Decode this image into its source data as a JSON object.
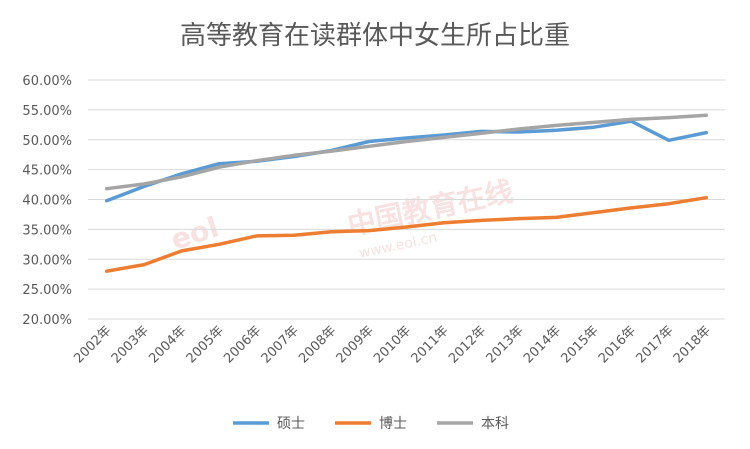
{
  "watermark": {
    "logo_text": "eol",
    "cn_text": "中国教育在线",
    "url_text": "www.eol.cn"
  },
  "chart_data": {
    "type": "line",
    "title": "高等教育在读群体中女生所占比重",
    "categories": [
      "2002年",
      "2003年",
      "2004年",
      "2005年",
      "2006年",
      "2007年",
      "2008年",
      "2009年",
      "2010年",
      "2011年",
      "2012年",
      "2013年",
      "2014年",
      "2015年",
      "2016年",
      "2017年",
      "2018年"
    ],
    "ylim": [
      0.2,
      0.6
    ],
    "yticks": [
      0.2,
      0.25,
      0.3,
      0.35,
      0.4,
      0.45,
      0.5,
      0.55,
      0.6
    ],
    "ytick_labels": [
      "20.00%",
      "25.00%",
      "30.00%",
      "35.00%",
      "40.00%",
      "45.00%",
      "50.00%",
      "55.00%",
      "60.00%"
    ],
    "grid": true,
    "legend": "bottom",
    "series": [
      {
        "name": "硕士",
        "color": "#5b9bd5",
        "values": [
          0.398,
          0.422,
          0.443,
          0.46,
          0.464,
          0.472,
          0.482,
          0.497,
          0.503,
          0.508,
          0.514,
          0.513,
          0.516,
          0.521,
          0.531,
          0.499,
          0.512
        ]
      },
      {
        "name": "博士",
        "color": "#ed7d31",
        "values": [
          0.28,
          0.291,
          0.314,
          0.325,
          0.339,
          0.34,
          0.346,
          0.348,
          0.354,
          0.361,
          0.365,
          0.368,
          0.37,
          0.378,
          0.386,
          0.393,
          0.403
        ]
      },
      {
        "name": "本科",
        "color": "#a5a5a5",
        "values": [
          0.418,
          0.426,
          0.438,
          0.454,
          0.465,
          0.474,
          0.481,
          0.489,
          0.497,
          0.504,
          0.511,
          0.518,
          0.524,
          0.529,
          0.534,
          0.537,
          0.541
        ]
      }
    ]
  }
}
